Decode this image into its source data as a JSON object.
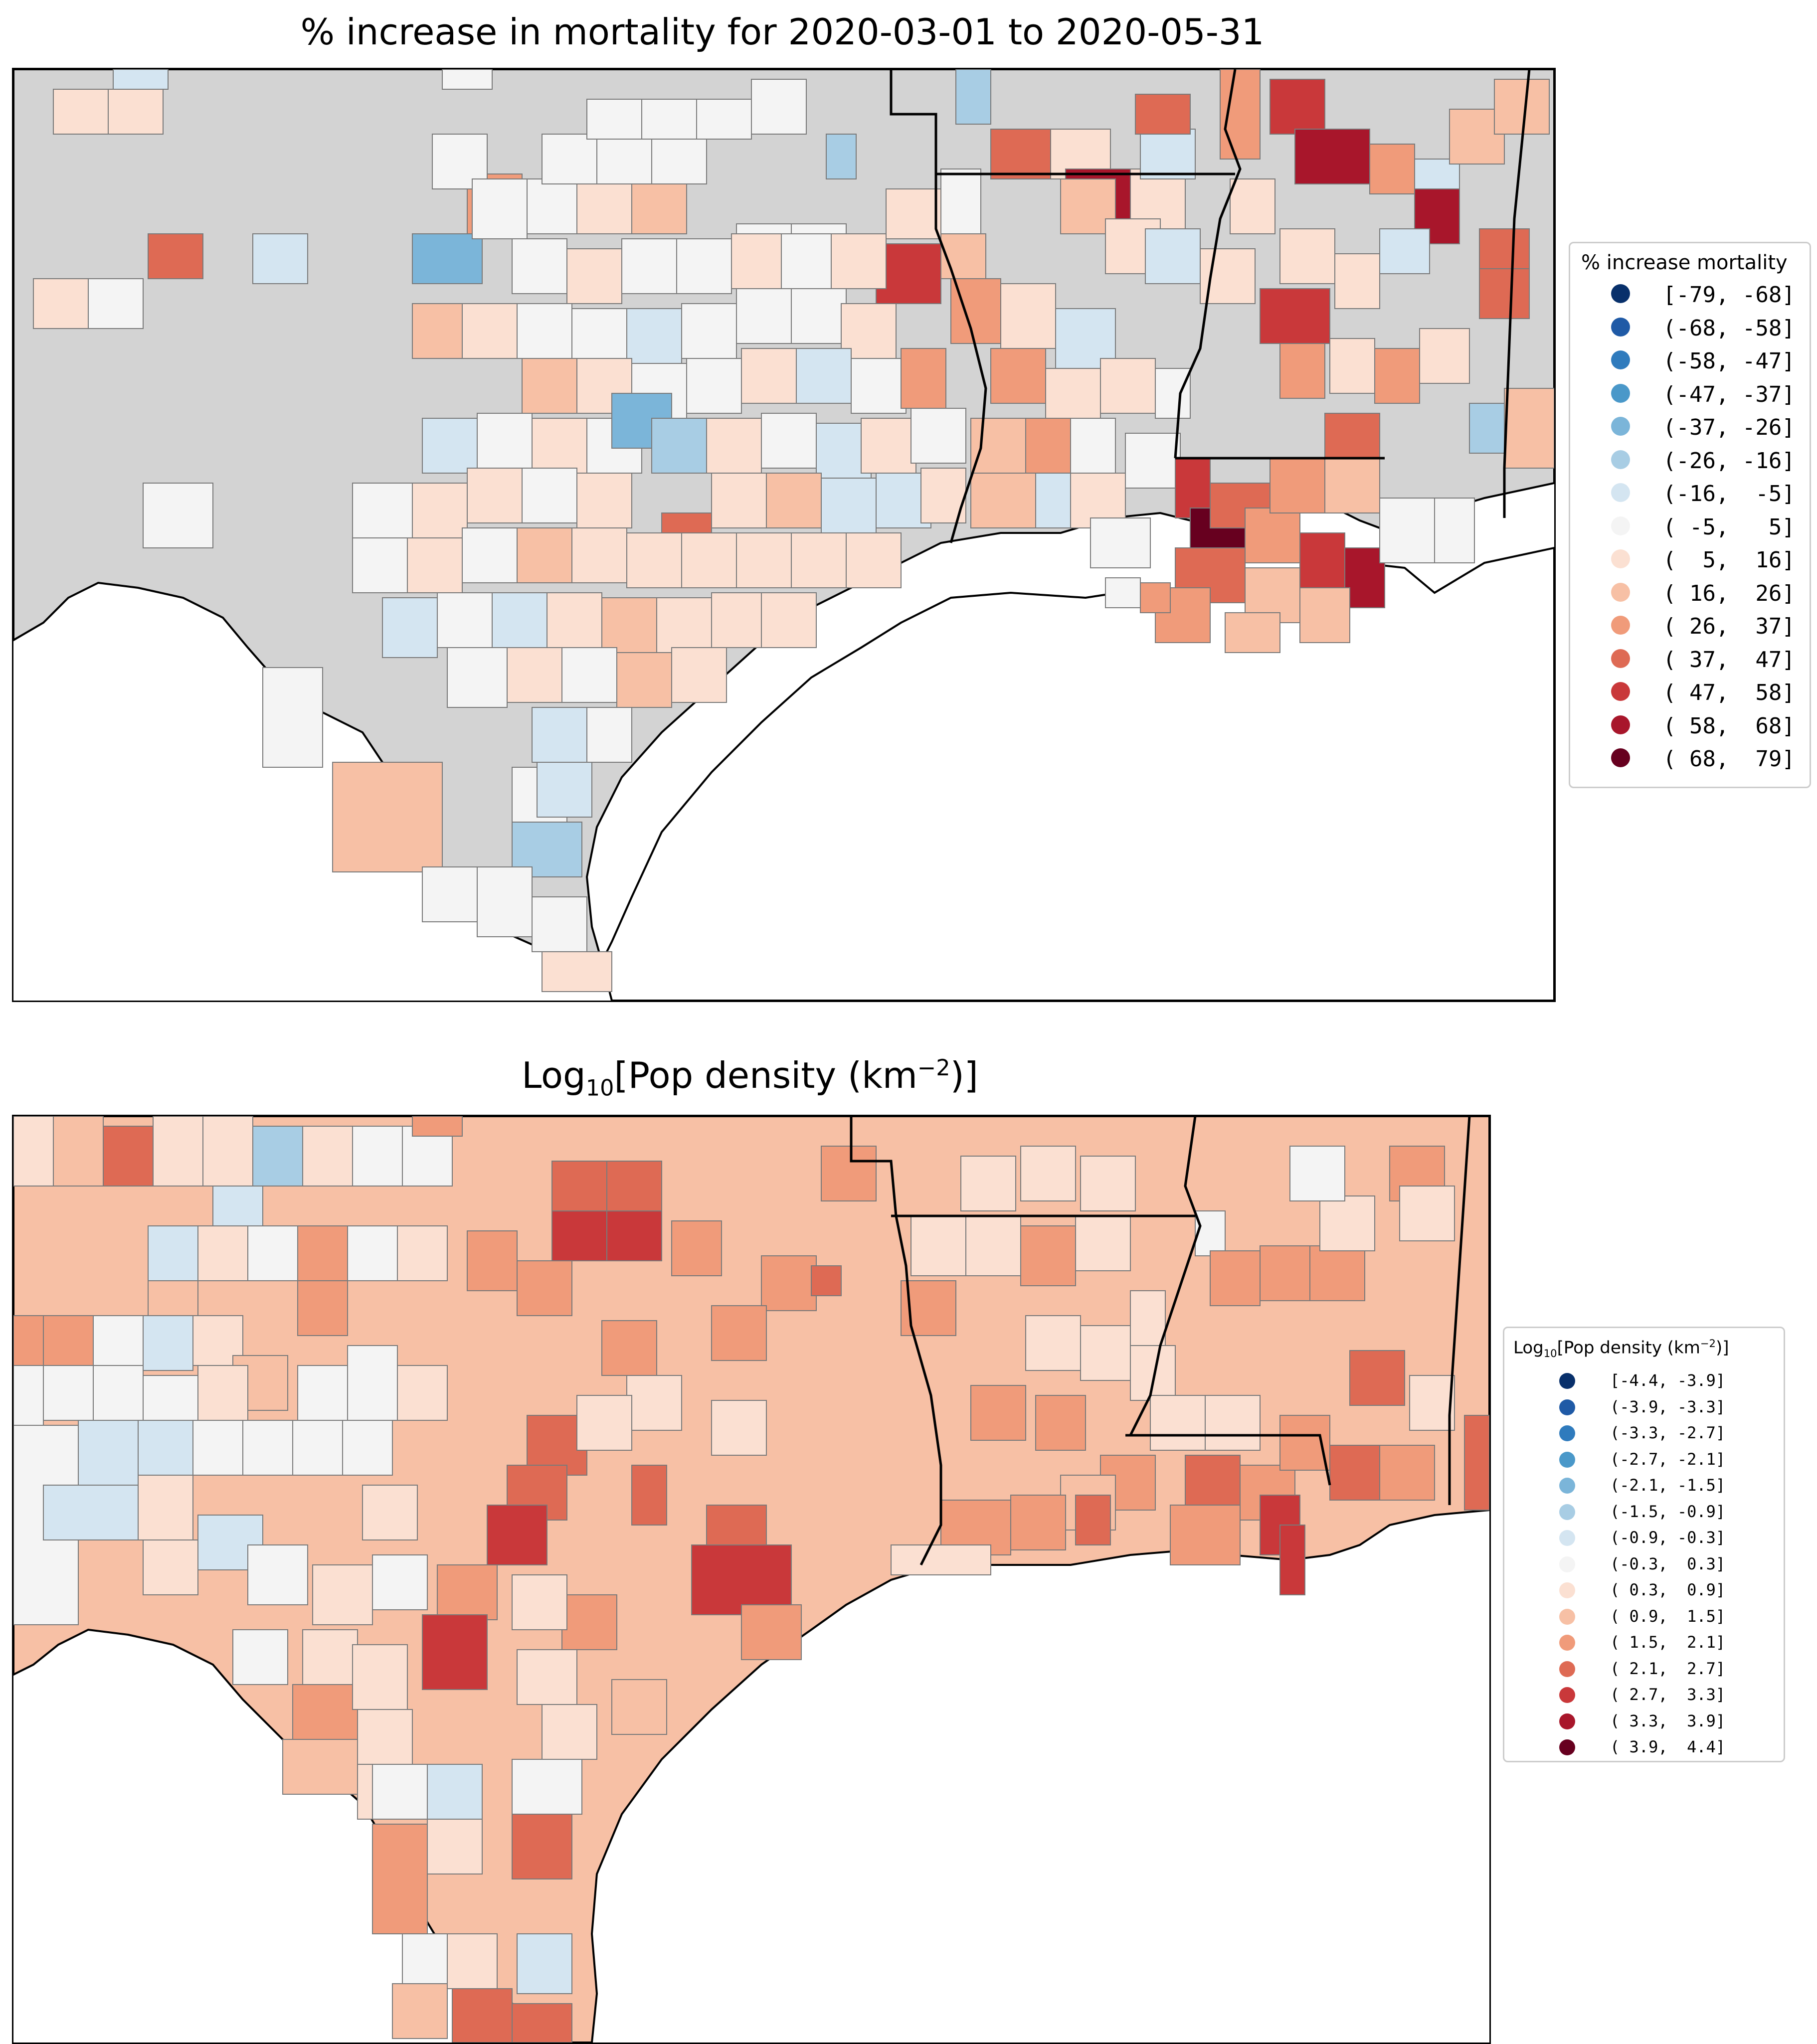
{
  "map1": {
    "title": "% increase in mortality for 2020-03-01 to 2020-05-31",
    "legend_title": "% increase mortality",
    "legend": [
      {
        "label": "[-79, -68]",
        "color": "#08306b"
      },
      {
        "label": "(-68, -58]",
        "color": "#1f5aa6"
      },
      {
        "label": "(-58, -47]",
        "color": "#2f7bbd"
      },
      {
        "label": "(-47, -37]",
        "color": "#4a98c9"
      },
      {
        "label": "(-37, -26]",
        "color": "#7bb5d9"
      },
      {
        "label": "(-26, -16]",
        "color": "#a8cde4"
      },
      {
        "label": "(-16,  -5]",
        "color": "#d4e5f1"
      },
      {
        "label": "( -5,   5]",
        "color": "#f4f4f4"
      },
      {
        "label": "(  5,  16]",
        "color": "#fbe0d2"
      },
      {
        "label": "( 16,  26]",
        "color": "#f7c0a5"
      },
      {
        "label": "( 26,  37]",
        "color": "#f09b7a"
      },
      {
        "label": "( 37,  47]",
        "color": "#de6a54"
      },
      {
        "label": "( 47,  58]",
        "color": "#c9383a"
      },
      {
        "label": "( 58,  68]",
        "color": "#a8162b"
      },
      {
        "label": "( 68,  79]",
        "color": "#67001f"
      }
    ]
  },
  "map2": {
    "title_prefix": "Log",
    "title_sub": "10",
    "title_mid": "[Pop density (km",
    "title_sup": "−2",
    "title_suffix": ")]",
    "legend_title_prefix": "Log",
    "legend_title_sub": "10",
    "legend_title_mid": "[Pop density (km",
    "legend_title_sup": "−2",
    "legend_title_suffix": ")]",
    "legend": [
      {
        "label": "[-4.4, -3.9]",
        "color": "#08306b"
      },
      {
        "label": "(-3.9, -3.3]",
        "color": "#1f5aa6"
      },
      {
        "label": "(-3.3, -2.7]",
        "color": "#2f7bbd"
      },
      {
        "label": "(-2.7, -2.1]",
        "color": "#4a98c9"
      },
      {
        "label": "(-2.1, -1.5]",
        "color": "#7bb5d9"
      },
      {
        "label": "(-1.5, -0.9]",
        "color": "#a8cde4"
      },
      {
        "label": "(-0.9, -0.3]",
        "color": "#d4e5f1"
      },
      {
        "label": "(-0.3,  0.3]",
        "color": "#f4f4f4"
      },
      {
        "label": "( 0.3,  0.9]",
        "color": "#fbe0d2"
      },
      {
        "label": "( 0.9,  1.5]",
        "color": "#f7c0a5"
      },
      {
        "label": "( 1.5,  2.1]",
        "color": "#f09b7a"
      },
      {
        "label": "( 2.1,  2.7]",
        "color": "#de6a54"
      },
      {
        "label": "( 2.7,  3.3]",
        "color": "#c9383a"
      },
      {
        "label": "( 3.3,  3.9]",
        "color": "#a8162b"
      },
      {
        "label": "( 3.9,  4.4]",
        "color": "#67001f"
      }
    ]
  }
}
